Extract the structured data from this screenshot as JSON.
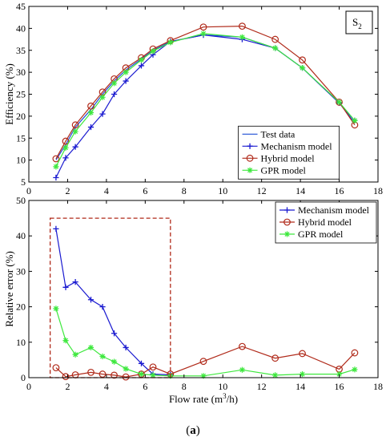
{
  "colors": {
    "test": "#1f4fd6",
    "mechanism": "#1a1ad0",
    "hybrid": "#b02a1a",
    "gpr": "#3ee83e",
    "box": "#b02a1a"
  },
  "caption_prefix": "(",
  "caption_letter": "a",
  "caption_suffix": ")",
  "chart_data": [
    {
      "type": "line",
      "ylabel": "Efficiency (%)",
      "xlim": [
        0,
        18
      ],
      "ylim": [
        5,
        45
      ],
      "xticks": [
        0,
        2,
        4,
        6,
        8,
        10,
        12,
        14,
        16,
        18
      ],
      "yticks": [
        5,
        10,
        15,
        20,
        25,
        30,
        35,
        40,
        45
      ],
      "annotation": {
        "base": "S",
        "sub": "2"
      },
      "legend_position": "lower-center",
      "series": [
        {
          "name": "Test data",
          "key": "test",
          "marker": "none",
          "x": [
            1.4,
            1.9,
            2.4,
            3.2,
            3.8,
            4.4,
            5.0,
            5.8,
            6.4,
            7.3,
            9.0,
            11.0,
            12.7,
            14.1,
            16.0,
            16.8
          ],
          "y": [
            10.0,
            13.5,
            17.5,
            21.5,
            25.0,
            28.0,
            30.5,
            33.0,
            35.0,
            37.0,
            38.5,
            38.0,
            35.5,
            31.0,
            23.0,
            18.5
          ]
        },
        {
          "name": "Mechanism model",
          "key": "mechanism",
          "marker": "plus",
          "x": [
            1.4,
            1.9,
            2.4,
            3.2,
            3.8,
            4.4,
            5.0,
            5.8,
            6.4,
            7.3,
            9.0,
            11.0,
            12.7,
            14.1,
            16.0,
            16.8
          ],
          "y": [
            6.0,
            10.5,
            13.0,
            17.5,
            20.5,
            25.0,
            28.0,
            31.5,
            34.0,
            37.0,
            38.5,
            37.5,
            35.5,
            31.0,
            23.0,
            19.0
          ]
        },
        {
          "name": "Hybrid model",
          "key": "hybrid",
          "marker": "circle",
          "x": [
            1.4,
            1.9,
            2.4,
            3.2,
            3.8,
            4.4,
            5.0,
            5.8,
            6.4,
            7.3,
            9.0,
            11.0,
            12.7,
            14.1,
            16.0,
            16.8
          ],
          "y": [
            10.3,
            14.3,
            18.0,
            22.3,
            25.5,
            28.5,
            31.0,
            33.3,
            35.3,
            37.2,
            40.3,
            40.5,
            37.5,
            32.8,
            23.2,
            18.0
          ]
        },
        {
          "name": "GPR model",
          "key": "gpr",
          "marker": "asterisk",
          "x": [
            1.4,
            1.9,
            2.4,
            3.2,
            3.8,
            4.4,
            5.0,
            5.8,
            6.4,
            7.3,
            9.0,
            11.0,
            12.7,
            14.1,
            16.0,
            16.8
          ],
          "y": [
            8.5,
            12.8,
            16.5,
            20.8,
            24.3,
            27.5,
            30.0,
            32.8,
            34.8,
            36.8,
            38.8,
            38.0,
            35.5,
            31.0,
            23.2,
            19.0
          ]
        }
      ]
    },
    {
      "type": "line",
      "ylabel": "Relative error (%)",
      "xlabel_base": "Flow rate (m",
      "xlabel_sup": "3",
      "xlabel_tail": "/h)",
      "xlim": [
        0,
        18
      ],
      "ylim": [
        0,
        50
      ],
      "xticks": [
        0,
        2,
        4,
        6,
        8,
        10,
        12,
        14,
        16,
        18
      ],
      "yticks": [
        0,
        10,
        20,
        30,
        40,
        50
      ],
      "legend_position": "top-right",
      "highlight_box": {
        "x": [
          1.1,
          7.3
        ],
        "y": [
          0,
          45
        ]
      },
      "series": [
        {
          "name": "Mechanism model",
          "key": "mechanism",
          "marker": "plus",
          "x": [
            1.4,
            1.9,
            2.4,
            3.2,
            3.8,
            4.4,
            5.0,
            5.8,
            6.4,
            7.3
          ],
          "y": [
            42.0,
            25.5,
            27.0,
            22.0,
            20.0,
            12.5,
            8.5,
            4.0,
            1.0,
            0.8
          ]
        },
        {
          "name": "Hybrid model",
          "key": "hybrid",
          "marker": "circle",
          "x": [
            1.4,
            1.9,
            2.4,
            3.2,
            3.8,
            4.4,
            5.0,
            5.8,
            6.4,
            7.3,
            9.0,
            11.0,
            12.7,
            14.1,
            16.0,
            16.8
          ],
          "y": [
            2.8,
            0.3,
            0.8,
            1.5,
            1.0,
            0.7,
            0.2,
            1.0,
            3.0,
            1.0,
            4.6,
            8.8,
            5.5,
            6.8,
            2.4,
            7.0
          ]
        },
        {
          "name": "GPR model",
          "key": "gpr",
          "marker": "asterisk",
          "x": [
            1.4,
            1.9,
            2.4,
            3.2,
            3.8,
            4.4,
            5.0,
            5.8,
            6.4,
            7.3,
            9.0,
            11.0,
            12.7,
            14.1,
            16.0,
            16.8
          ],
          "y": [
            19.5,
            10.5,
            6.5,
            8.5,
            6.0,
            4.5,
            2.5,
            1.0,
            0.7,
            0.5,
            0.5,
            2.2,
            0.7,
            1.0,
            1.0,
            2.3
          ]
        }
      ]
    }
  ]
}
